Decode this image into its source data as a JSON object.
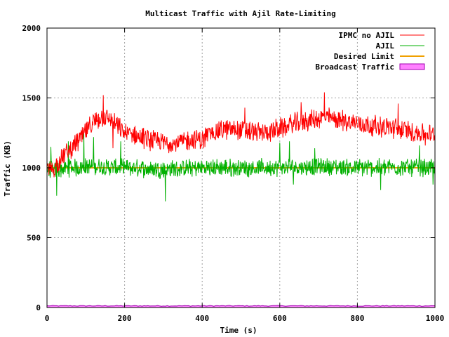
{
  "chart_data": {
    "type": "line",
    "title": "Multicast Traffic with Ajil Rate-Limiting",
    "xlabel": "Time (s)",
    "ylabel": "Traffic (KB)",
    "xlim": [
      0,
      1000
    ],
    "ylim": [
      0,
      2000
    ],
    "xticks": [
      0,
      200,
      400,
      600,
      800,
      1000
    ],
    "yticks": [
      0,
      500,
      1000,
      1500,
      2000
    ],
    "grid": true,
    "legend_position": "top-right",
    "anchors_note_excluded": true,
    "series": [
      {
        "name": "IPMC no AJIL",
        "color": "#ff0000",
        "style": "noisy-line",
        "anchors": [
          [
            0,
            980
          ],
          [
            20,
            1000
          ],
          [
            40,
            1080
          ],
          [
            60,
            1130
          ],
          [
            80,
            1190
          ],
          [
            100,
            1260
          ],
          [
            120,
            1320
          ],
          [
            140,
            1360
          ],
          [
            160,
            1350
          ],
          [
            180,
            1300
          ],
          [
            200,
            1250
          ],
          [
            230,
            1230
          ],
          [
            260,
            1200
          ],
          [
            300,
            1180
          ],
          [
            340,
            1180
          ],
          [
            370,
            1200
          ],
          [
            400,
            1200
          ],
          [
            420,
            1250
          ],
          [
            450,
            1270
          ],
          [
            480,
            1280
          ],
          [
            520,
            1260
          ],
          [
            560,
            1250
          ],
          [
            600,
            1280
          ],
          [
            640,
            1320
          ],
          [
            680,
            1340
          ],
          [
            720,
            1360
          ],
          [
            760,
            1340
          ],
          [
            800,
            1320
          ],
          [
            840,
            1300
          ],
          [
            880,
            1290
          ],
          [
            920,
            1270
          ],
          [
            960,
            1250
          ],
          [
            1000,
            1230
          ]
        ],
        "noise": 65,
        "spikes": [
          [
            145,
            1520
          ],
          [
            715,
            1540
          ],
          [
            510,
            1430
          ],
          [
            655,
            1470
          ],
          [
            905,
            1460
          ],
          [
            975,
            1400
          ],
          [
            975,
            1160
          ],
          [
            170,
            1140
          ]
        ]
      },
      {
        "name": "AJIL",
        "color": "#00b000",
        "style": "noisy-line",
        "anchors": [
          [
            0,
            980
          ],
          [
            100,
            1010
          ],
          [
            200,
            1000
          ],
          [
            300,
            990
          ],
          [
            400,
            1000
          ],
          [
            500,
            1000
          ],
          [
            600,
            1000
          ],
          [
            700,
            1010
          ],
          [
            800,
            1000
          ],
          [
            900,
            1005
          ],
          [
            1000,
            1000
          ]
        ],
        "noise": 55,
        "spikes": [
          [
            10,
            1150
          ],
          [
            25,
            800
          ],
          [
            55,
            1190
          ],
          [
            95,
            1250
          ],
          [
            120,
            1220
          ],
          [
            190,
            1190
          ],
          [
            305,
            760
          ],
          [
            600,
            1180
          ],
          [
            625,
            1190
          ],
          [
            635,
            880
          ],
          [
            690,
            1140
          ],
          [
            860,
            840
          ],
          [
            960,
            1160
          ],
          [
            995,
            880
          ]
        ]
      },
      {
        "name": "Desired Limit",
        "color": "#f0a000",
        "style": "line",
        "x": [
          0,
          1000
        ],
        "y": [
          1000,
          1000
        ]
      },
      {
        "name": "Broadcast Traffic",
        "color": "#ff80ff",
        "stroke": "#a000b0",
        "style": "filled",
        "x": [
          0,
          1000
        ],
        "y": [
          12,
          12
        ],
        "noise": 6
      }
    ]
  }
}
